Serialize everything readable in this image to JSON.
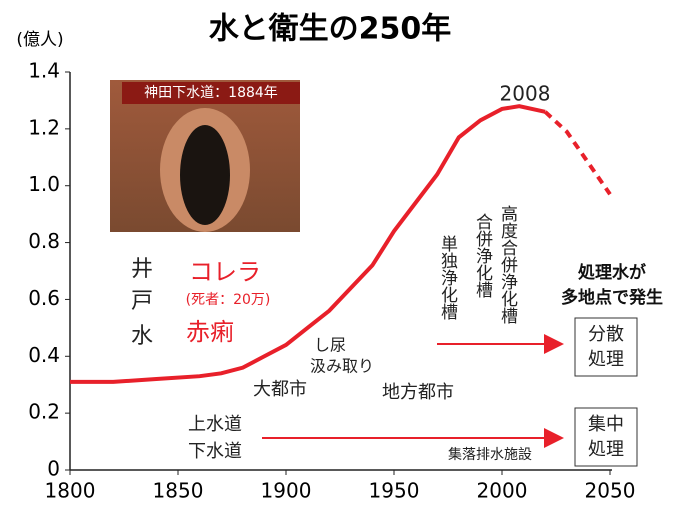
{
  "chart_data": {
    "type": "line",
    "title": "水と衛生の250年",
    "y_unit": "(億人)",
    "x": [
      1800,
      1820,
      1840,
      1860,
      1870,
      1880,
      1890,
      1900,
      1910,
      1920,
      1930,
      1940,
      1950,
      1960,
      1970,
      1980,
      1990,
      2000,
      2008,
      2020,
      2030,
      2040,
      2050
    ],
    "series": [
      {
        "color": "#e8202a",
        "dashed": false,
        "values": [
          0.31,
          0.31,
          0.32,
          0.33,
          0.34,
          0.36,
          0.4,
          0.44,
          0.5,
          0.56,
          0.64,
          0.72,
          0.84,
          0.94,
          1.04,
          1.17,
          1.23,
          1.27,
          1.28,
          1.26,
          null,
          null,
          null
        ]
      },
      {
        "color": "#e8202a",
        "dashed": true,
        "values": [
          null,
          null,
          null,
          null,
          null,
          null,
          null,
          null,
          null,
          null,
          null,
          null,
          null,
          null,
          null,
          null,
          null,
          null,
          null,
          1.26,
          1.19,
          1.08,
          0.97
        ]
      }
    ],
    "xlim": [
      1800,
      2050
    ],
    "xticks": [
      1800,
      1850,
      1900,
      1950,
      2000,
      2050
    ],
    "ylim": [
      0,
      1.4
    ],
    "yticks": [
      0,
      0.2,
      0.4,
      0.6,
      0.8,
      {
        "value": 1,
        "label": "1.0"
      },
      1.2,
      1.4
    ],
    "grid": false,
    "annotations": {
      "peak": "2008",
      "photo_caption": "神田下水道：1884年",
      "well_1": "井",
      "well_2": "戸",
      "well_3": "水",
      "cholera": "コレラ",
      "deaths": "(死者：20万)",
      "dysentery": "赤痢",
      "nightsoil_1": "し尿",
      "nightsoil_2": "汲み取り",
      "big_city": "大都市",
      "local_city": "地方都市",
      "water_supply": "上水道",
      "sewer": "下水道",
      "village_drainage": "集落排水施設",
      "tank_single": "単独浄化槽",
      "tank_combined": "合併浄化槽",
      "tank_advanced": "高度合併浄化槽",
      "treated_1": "処理水が",
      "treated_2": "多地点で発生",
      "dist_1": "分散",
      "dist_2": "処理",
      "central_1": "集中",
      "central_2": "処理"
    }
  }
}
